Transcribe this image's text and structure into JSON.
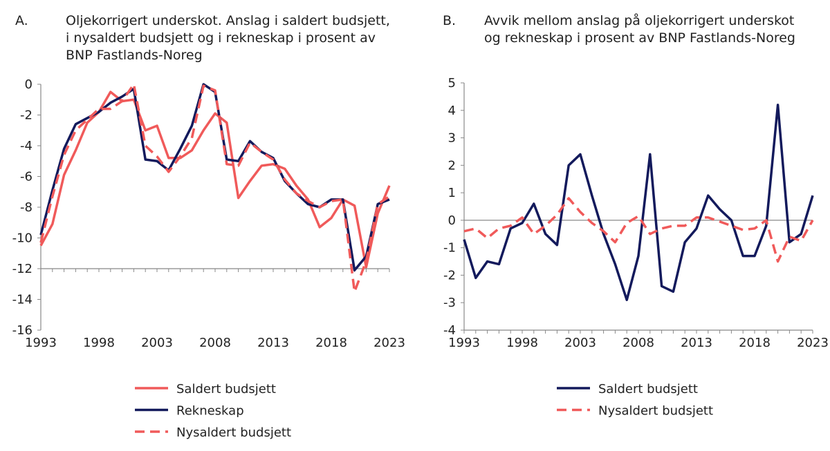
{
  "chart_data": [
    {
      "type": "line",
      "panel_label": "A.",
      "title": "Oljekorrigert underskot. Anslag i saldert budsjett, i nysaldert budsjett og i rekneskap i prosent av BNP Fastlands-Noreg",
      "x": [
        1993,
        1994,
        1995,
        1996,
        1997,
        1998,
        1999,
        2000,
        2001,
        2002,
        2003,
        2004,
        2005,
        2006,
        2007,
        2008,
        2009,
        2010,
        2011,
        2012,
        2013,
        2014,
        2015,
        2016,
        2017,
        2018,
        2019,
        2020,
        2021,
        2022,
        2023
      ],
      "x_ticks": [
        "1993",
        "1998",
        "2003",
        "2008",
        "2013",
        "2018",
        "2023"
      ],
      "y_ticks": [
        "0",
        "-2",
        "-4",
        "-6",
        "-8",
        "-10",
        "-12",
        "-14",
        "-16"
      ],
      "ylim": [
        -16,
        0
      ],
      "x_axis_at": -12,
      "grid": false,
      "legend_position": "bottom",
      "series": [
        {
          "name": "Saldert budsjett",
          "color": "#f05a5a",
          "dash": false,
          "values": [
            -10.5,
            -9.1,
            -5.9,
            -4.3,
            -2.5,
            -1.8,
            -0.5,
            -1.1,
            -1.0,
            -3.0,
            -2.7,
            -4.8,
            -4.8,
            -4.3,
            -3.0,
            -1.9,
            -2.5,
            -7.4,
            -6.3,
            -5.3,
            -5.2,
            -5.5,
            -6.6,
            -7.5,
            -9.3,
            -8.7,
            -7.5,
            -7.9,
            -11.9,
            -8.4,
            -6.6
          ]
        },
        {
          "name": "Rekneskap",
          "color": "#131a5c",
          "dash": false,
          "values": [
            -9.8,
            -6.9,
            -4.2,
            -2.6,
            -2.2,
            -1.8,
            -1.2,
            -0.8,
            -0.3,
            -4.9,
            -5.0,
            -5.6,
            -4.2,
            -2.7,
            0.0,
            -0.5,
            -4.9,
            -5.0,
            -3.7,
            -4.4,
            -4.8,
            -6.3,
            -7.1,
            -7.8,
            -8.0,
            -7.5,
            -7.5,
            -12.1,
            -11.2,
            -7.8,
            -7.5
          ]
        },
        {
          "name": "Nysaldert budsjett",
          "color": "#f05a5a",
          "dash": true,
          "values": [
            -10.3,
            -7.3,
            -4.6,
            -3.0,
            -2.3,
            -1.6,
            -1.6,
            -1.1,
            0.0,
            -4.0,
            -4.7,
            -5.7,
            -4.7,
            -3.5,
            -0.1,
            -0.4,
            -5.2,
            -5.3,
            -3.8,
            -4.4,
            -4.9,
            -6.2,
            -7.1,
            -7.6,
            -8.0,
            -7.6,
            -7.5,
            -13.5,
            -11.5,
            -7.8,
            -7.3
          ]
        }
      ]
    },
    {
      "type": "line",
      "panel_label": "B.",
      "title": "Avvik mellom anslag på oljekorrigert underskot og rekneskap i prosent av BNP Fastlands-Noreg",
      "x": [
        1993,
        1994,
        1995,
        1996,
        1997,
        1998,
        1999,
        2000,
        2001,
        2002,
        2003,
        2004,
        2005,
        2006,
        2007,
        2008,
        2009,
        2010,
        2011,
        2012,
        2013,
        2014,
        2015,
        2016,
        2017,
        2018,
        2019,
        2020,
        2021,
        2022,
        2023
      ],
      "x_ticks": [
        "1993",
        "1998",
        "2003",
        "2008",
        "2013",
        "2018",
        "2023"
      ],
      "y_ticks": [
        "5",
        "4",
        "3",
        "2",
        "1",
        "0",
        "-1",
        "-2",
        "-3",
        "-4"
      ],
      "ylim": [
        -4,
        5
      ],
      "x_axis_at": -4,
      "zero_line": true,
      "grid": false,
      "legend_position": "bottom",
      "series": [
        {
          "name": "Saldert budsjett",
          "color": "#131a5c",
          "dash": false,
          "values": [
            -0.7,
            -2.1,
            -1.5,
            -1.6,
            -0.3,
            -0.1,
            0.6,
            -0.5,
            -0.9,
            2.0,
            2.4,
            0.9,
            -0.5,
            -1.6,
            -2.9,
            -1.3,
            2.4,
            -2.4,
            -2.6,
            -0.8,
            -0.3,
            0.9,
            0.4,
            0.0,
            -1.3,
            -1.3,
            -0.2,
            4.2,
            -0.8,
            -0.5,
            0.9
          ]
        },
        {
          "name": "Nysaldert budsjett",
          "color": "#f05a5a",
          "dash": true,
          "values": [
            -0.4,
            -0.3,
            -0.65,
            -0.3,
            -0.2,
            0.1,
            -0.5,
            -0.2,
            0.2,
            0.8,
            0.3,
            -0.1,
            -0.4,
            -0.8,
            -0.1,
            0.15,
            -0.5,
            -0.3,
            -0.2,
            -0.2,
            0.1,
            0.1,
            -0.05,
            -0.2,
            -0.35,
            -0.3,
            0.0,
            -1.5,
            -0.6,
            -0.75,
            0.0
          ]
        }
      ]
    }
  ]
}
